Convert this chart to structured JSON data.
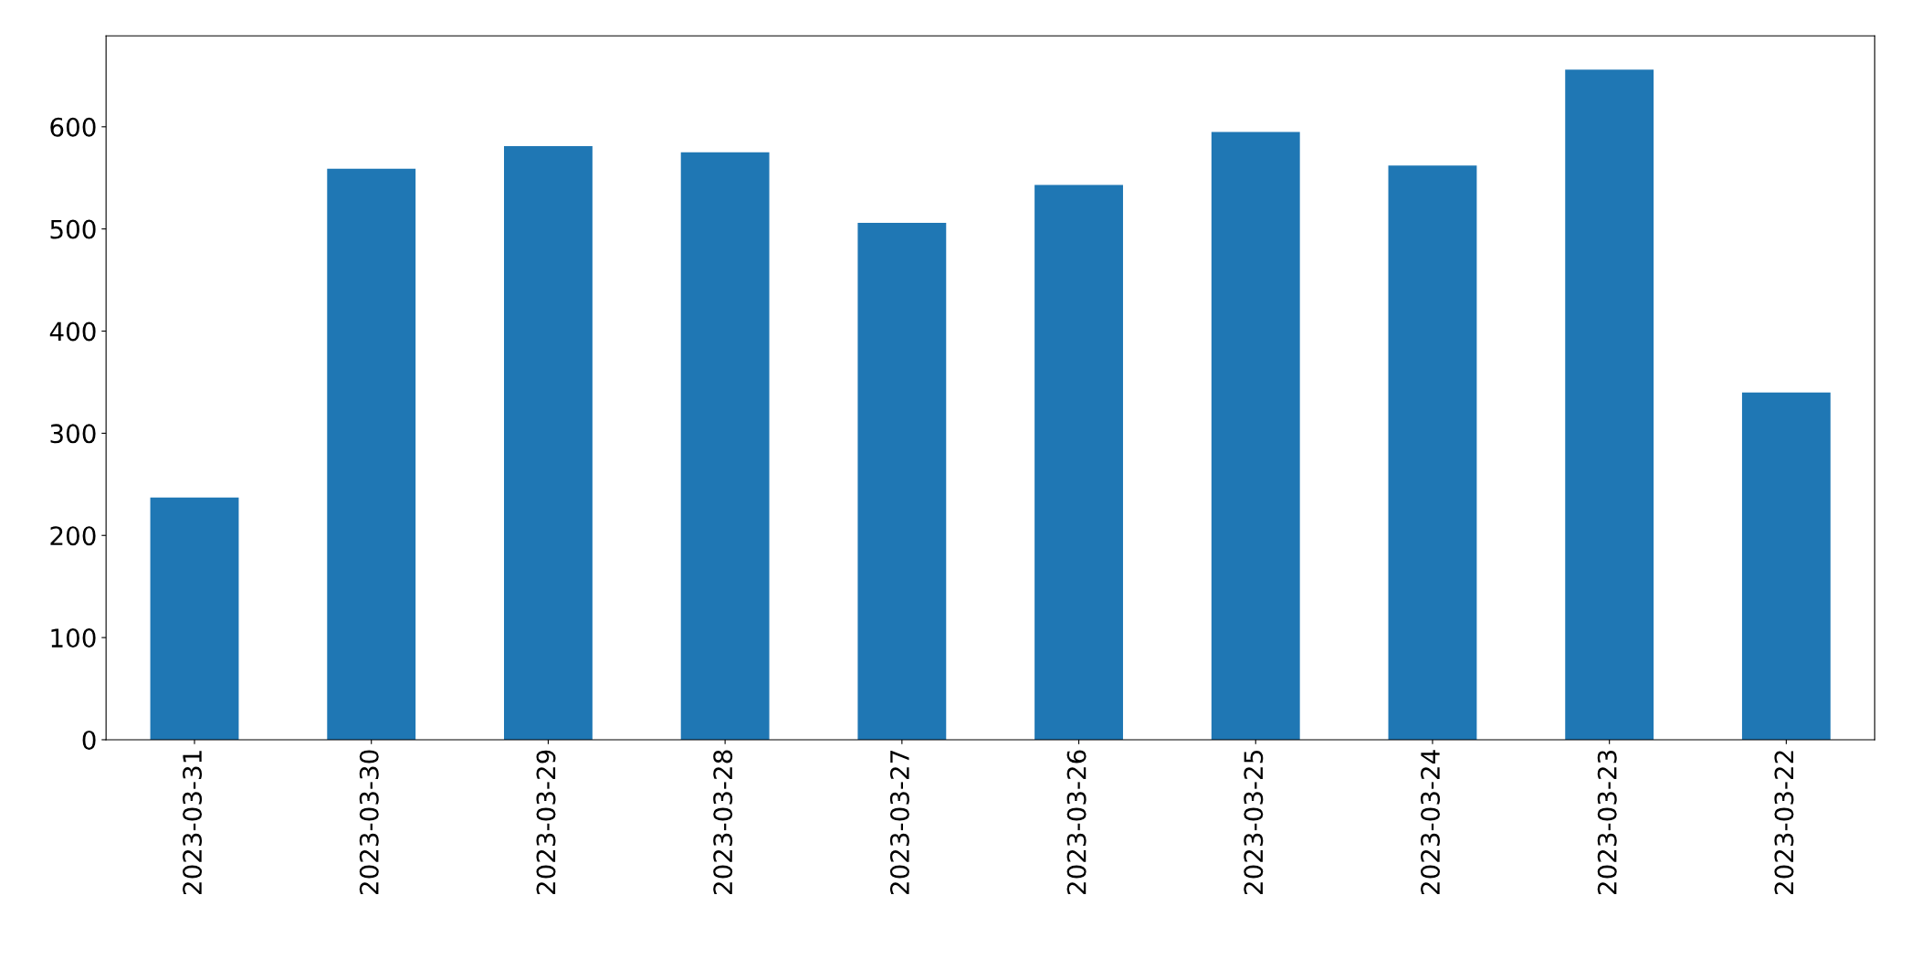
{
  "chart_data": {
    "type": "bar",
    "categories": [
      "2023-03-31",
      "2023-03-30",
      "2023-03-29",
      "2023-03-28",
      "2023-03-27",
      "2023-03-26",
      "2023-03-25",
      "2023-03-24",
      "2023-03-23",
      "2023-03-22"
    ],
    "values": [
      237,
      559,
      581,
      575,
      506,
      543,
      595,
      562,
      656,
      340
    ],
    "color": "#1f77b4",
    "ylim": [
      0,
      689
    ],
    "yticks": [
      0,
      100,
      200,
      300,
      400,
      500,
      600
    ],
    "grid": false,
    "legend": false
  }
}
